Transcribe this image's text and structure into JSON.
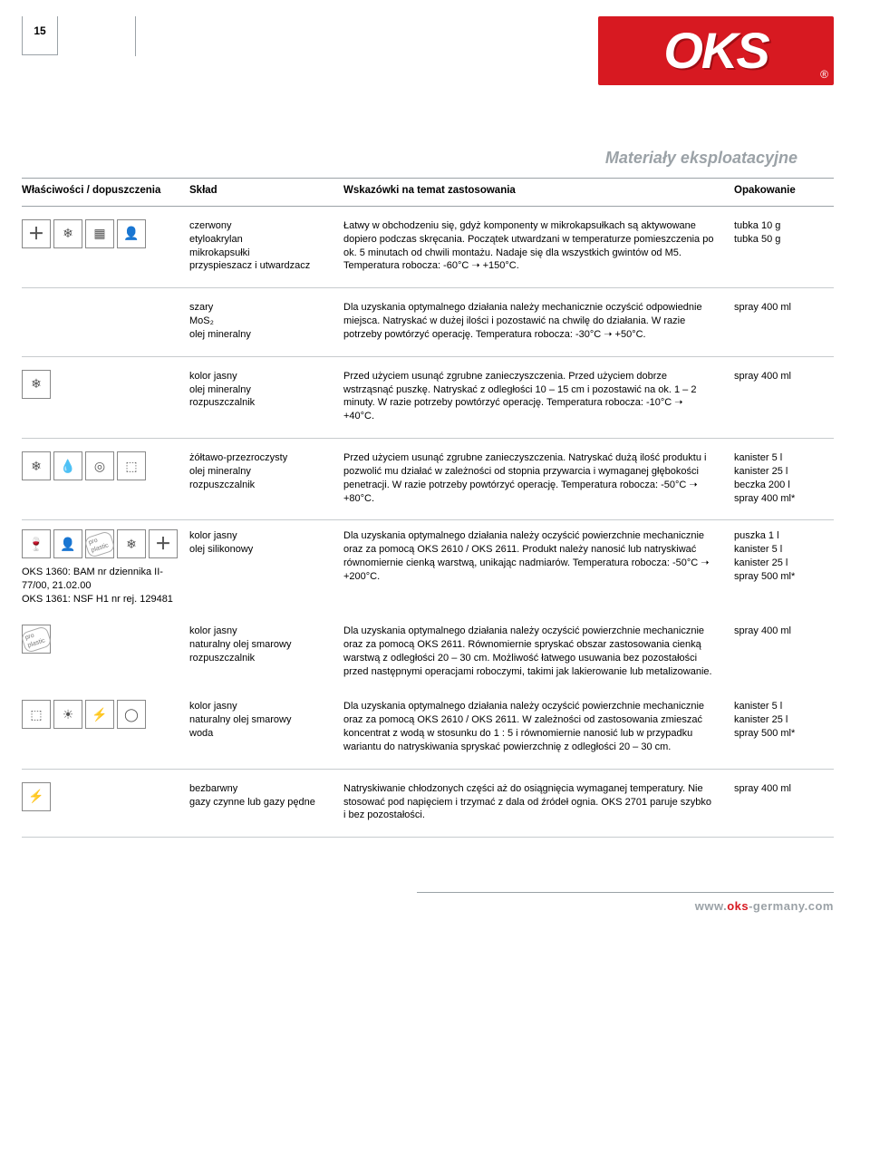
{
  "page_number": "15",
  "logo_text": "OKS",
  "logo_reg": "®",
  "section_title": "Materiały eksploatacyjne",
  "columns": {
    "c1": "Właściwości / dopuszczenia",
    "c2": "Skład",
    "c3": "Wskazówki na temat zastosowania",
    "c4": "Opakowanie"
  },
  "rows": [
    {
      "icons": [
        "＋",
        "❄",
        "▦",
        "👤"
      ],
      "composition": "czerwony\netyloakrylan\nmikrokapsułki\nprzyspieszacz i utwardzacz",
      "application": "Łatwy w obchodzeniu się, gdyż komponenty w mikrokapsułkach są aktywowane dopiero podczas skręcania. Początek utwardzani w temperaturze pomieszczenia po ok. 5 minutach od chwili montażu. Nadaje się dla wszystkich gwintów od M5. Temperatura robocza: -60°C ➝ +150°C.",
      "packaging": "tubka 10 g\ntubka 50 g"
    },
    {
      "icons": [],
      "composition": "szary\nMoS₂\nolej mineralny",
      "application": "Dla uzyskania optymalnego działania należy mechanicznie oczyścić odpowiednie miejsca. Natryskać w dużej ilości i pozostawić na chwilę do działania. W razie potrzeby powtórzyć operację. Temperatura robocza: -30°C ➝ +50°C.",
      "packaging": "spray 400 ml"
    },
    {
      "icons": [
        "❄"
      ],
      "composition": "kolor jasny\nolej mineralny\nrozpuszczalnik",
      "application": "Przed użyciem usunąć zgrubne zanieczyszczenia. Przed użyciem dobrze wstrząsnąć puszkę. Natryskać z odległości 10 – 15 cm i pozostawić na ok. 1 – 2 minuty. W razie potrzeby powtórzyć operację. Temperatura robocza: -10°C ➝ +40°C.",
      "packaging": "spray 400 ml"
    },
    {
      "icons": [
        "❄",
        "💧",
        "◎",
        "⬚"
      ],
      "composition": "żółtawo-przezroczysty\nolej mineralny\nrozpuszczalnik",
      "application": "Przed użyciem usunąć zgrubne zanieczyszczenia. Natryskać dużą ilość produktu i pozwolić mu działać w zależności od stopnia przywarcia i wymaganej głębokości penetracji. W razie potrzeby powtórzyć operację. Temperatura robocza: -50°C ➝ +80°C.",
      "packaging": "kanister 5 l\nkanister 25 l\nbeczka 200 l\nspray 400 ml*"
    },
    {
      "icons": [
        "🍷",
        "👤",
        "pp",
        "❄",
        "＋"
      ],
      "approvals": "OKS 1360: BAM nr dziennika II-77/00, 21.02.00\nOKS 1361: NSF H1 nr rej. 129481",
      "composition": "kolor jasny\nolej silikonowy",
      "application": "Dla uzyskania optymalnego działania należy oczyścić powierzchnie mechanicznie oraz za pomocą OKS 2610 / OKS 2611. Produkt należy nanosić lub natryskiwać równomiernie cienką warstwą, unikając nadmiarów. Temperatura robocza: -50°C ➝ +200°C.",
      "packaging": "puszka 1 l\nkanister 5 l\nkanister 25 l\nspray 500 ml*",
      "inner": true
    },
    {
      "icons": [
        "pp"
      ],
      "composition": "kolor jasny\nnaturalny olej smarowy\nrozpuszczalnik",
      "application": "Dla uzyskania optymalnego działania należy oczyścić powierzchnie mechanicznie oraz za pomocą OKS 2611. Równomiernie spryskać obszar zastosowania cienką warstwą z odległości 20 – 30 cm. Możliwość łatwego usuwania bez pozostałości przed następnymi operacjami roboczymi, takimi jak lakierowanie lub metalizowanie.",
      "packaging": "spray 400 ml",
      "inner": true
    },
    {
      "icons": [
        "⬚",
        "☀",
        "⚡",
        "◯"
      ],
      "composition": "kolor jasny\nnaturalny olej smarowy\nwoda",
      "application": "Dla uzyskania optymalnego działania należy oczyścić powierzchnie mechanicznie oraz za pomocą OKS 2610 / OKS 2611. W zależności od zastosowania zmieszać koncentrat z wodą w stosunku do 1 : 5 i równomiernie nanosić lub w przypadku wariantu do natryskiwania spryskać powierzchnię z odległości 20 – 30 cm.",
      "packaging": "kanister 5 l\nkanister 25 l\nspray 500 ml*"
    },
    {
      "icons": [
        "⚡"
      ],
      "composition": "bezbarwny\ngazy czynne lub gazy pędne",
      "application": "Natryskiwanie chłodzonych części aż do osiągnięcia wymaganej temperatury. Nie stosować pod napięciem i trzymać z dala od źródeł ognia. OKS 2701 paruje szybko i bez pozostałości.",
      "packaging": "spray 400 ml"
    }
  ],
  "footer": {
    "grey1": "www.",
    "red": "oks",
    "grey2": "-germany.com"
  }
}
